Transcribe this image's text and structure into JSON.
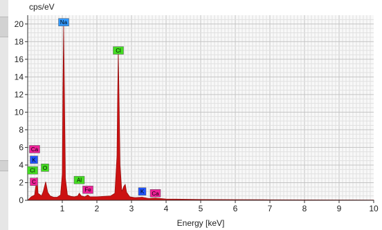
{
  "chart_data": {
    "type": "line",
    "ylabel": "cps/eV",
    "xlabel": "Energy [keV]",
    "xlim": [
      0,
      10
    ],
    "ylim": [
      0,
      21
    ],
    "xticks": [
      1,
      2,
      3,
      4,
      5,
      6,
      7,
      8,
      9,
      10
    ],
    "yticks": [
      0,
      2,
      4,
      6,
      8,
      10,
      12,
      14,
      16,
      18,
      20
    ],
    "grid": true,
    "series": [
      {
        "color": "#cc1111",
        "points": [
          [
            0.0,
            0.0
          ],
          [
            0.1,
            0.4
          ],
          [
            0.2,
            0.6
          ],
          [
            0.27,
            2.6
          ],
          [
            0.3,
            0.8
          ],
          [
            0.4,
            0.5
          ],
          [
            0.45,
            1.0
          ],
          [
            0.52,
            2.1
          ],
          [
            0.58,
            0.9
          ],
          [
            0.65,
            0.5
          ],
          [
            0.75,
            0.35
          ],
          [
            0.85,
            0.35
          ],
          [
            0.95,
            0.6
          ],
          [
            1.0,
            3.0
          ],
          [
            1.02,
            13.0
          ],
          [
            1.04,
            20.0
          ],
          [
            1.06,
            13.0
          ],
          [
            1.09,
            2.5
          ],
          [
            1.15,
            0.6
          ],
          [
            1.25,
            0.45
          ],
          [
            1.35,
            0.4
          ],
          [
            1.45,
            0.5
          ],
          [
            1.49,
            0.8
          ],
          [
            1.55,
            0.5
          ],
          [
            1.65,
            0.4
          ],
          [
            1.74,
            0.6
          ],
          [
            1.8,
            0.4
          ],
          [
            2.0,
            0.4
          ],
          [
            2.2,
            0.45
          ],
          [
            2.4,
            0.5
          ],
          [
            2.52,
            0.8
          ],
          [
            2.58,
            5.0
          ],
          [
            2.6,
            12.0
          ],
          [
            2.62,
            16.8
          ],
          [
            2.64,
            12.0
          ],
          [
            2.67,
            4.0
          ],
          [
            2.72,
            1.0
          ],
          [
            2.78,
            1.6
          ],
          [
            2.82,
            1.8
          ],
          [
            2.86,
            0.9
          ],
          [
            2.95,
            0.4
          ],
          [
            3.1,
            0.3
          ],
          [
            3.31,
            0.35
          ],
          [
            3.5,
            0.2
          ],
          [
            3.69,
            0.25
          ],
          [
            4.0,
            0.15
          ],
          [
            5.0,
            0.1
          ],
          [
            6.0,
            0.08
          ],
          [
            7.0,
            0.06
          ],
          [
            8.0,
            0.05
          ],
          [
            9.0,
            0.04
          ],
          [
            10.0,
            0.03
          ]
        ]
      }
    ],
    "annotations": [
      {
        "text": "Na",
        "x": 1.04,
        "y": 20.2,
        "color": "#3399ff"
      },
      {
        "text": "Cl",
        "x": 2.62,
        "y": 17.0,
        "color": "#44dd22"
      },
      {
        "text": "Ca",
        "x": 0.2,
        "y": 5.8,
        "color": "#ee2299"
      },
      {
        "text": "K",
        "x": 0.18,
        "y": 4.6,
        "color": "#2255ff"
      },
      {
        "text": "Cl",
        "x": 0.14,
        "y": 3.4,
        "color": "#44dd22"
      },
      {
        "text": "O",
        "x": 0.5,
        "y": 3.7,
        "color": "#44dd22"
      },
      {
        "text": "C",
        "x": 0.18,
        "y": 2.1,
        "color": "#ee2299"
      },
      {
        "text": "Al",
        "x": 1.49,
        "y": 2.3,
        "color": "#44dd22"
      },
      {
        "text": "Fe",
        "x": 1.74,
        "y": 1.2,
        "color": "#ee2299"
      },
      {
        "text": "K",
        "x": 3.31,
        "y": 1.0,
        "color": "#2255ff"
      },
      {
        "text": "Ca",
        "x": 3.69,
        "y": 0.8,
        "color": "#ee2299"
      }
    ]
  }
}
